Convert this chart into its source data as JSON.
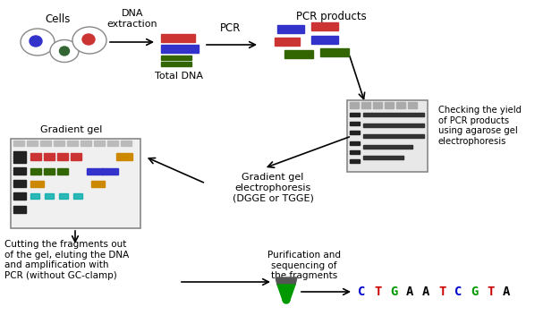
{
  "bg_color": "#ffffff",
  "fig_width": 6.07,
  "fig_height": 3.62,
  "dpi": 100,
  "cells_label": "Cells",
  "dna_extraction_label": "DNA\nextraction",
  "pcr_label": "PCR",
  "pcr_products_label": "PCR products",
  "total_dna_label": "Total DNA",
  "checking_label": "Checking the yield\nof PCR products\nusing agarose gel\nelectrophoresis",
  "gradient_gel_label": "Gradient gel",
  "gradient_gel_electrophoresis_label": "Gradient gel\nelectrophoresis\n(DGGE or TGGE)",
  "cutting_label": "Cutting the fragments out\nof the gel, eluting the DNA\nand amplification with\nPCR (without GC-clamp)",
  "purification_label": "Purification and\nsequencing of\nthe fragments",
  "cell_colors": [
    "#3333cc",
    "#cc3333",
    "#336633"
  ],
  "seq_letter_colors": [
    "#0000cc",
    "#cc0000",
    "#009900",
    "#000000",
    "#000000",
    "#cc0000",
    "#0000cc",
    "#009900",
    "#cc0000",
    "#000000"
  ],
  "seq_letters": [
    "C",
    "T",
    "G",
    "A",
    "A",
    "T",
    "C",
    "G",
    "T",
    "A"
  ]
}
